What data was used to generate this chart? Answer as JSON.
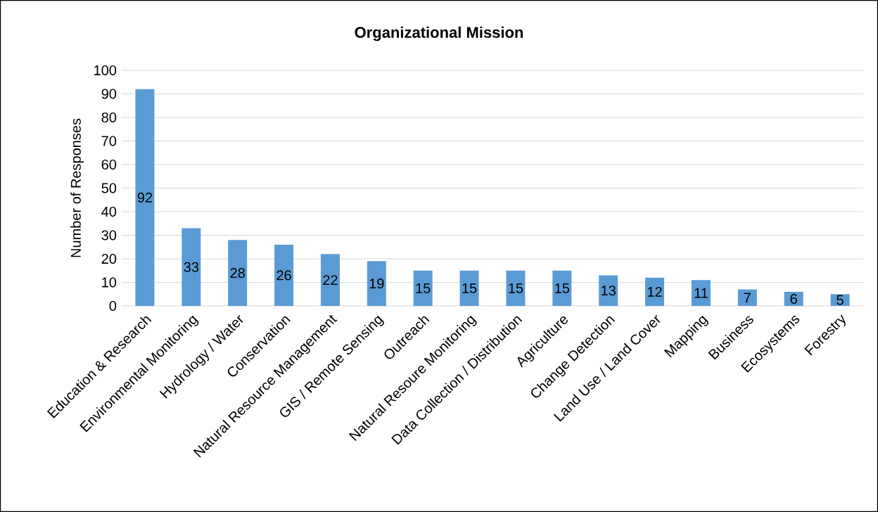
{
  "chart_data": {
    "type": "bar",
    "title": "Organizational Mission",
    "ylabel": "Number of Responses",
    "categories": [
      "Education & Research",
      "Environmental Monitoring",
      "Hydrology / Water",
      "Conservation",
      "Natural Resource Management",
      "GIS / Remote Sensing",
      "Outreach",
      "Natural Resoure Monitoring",
      "Data Collection / Distribution",
      "Agriculture",
      "Change Detection",
      "Land Use / Land Cover",
      "Mapping",
      "Business",
      "Ecosystems",
      "Forestry"
    ],
    "values": [
      92,
      33,
      28,
      26,
      22,
      19,
      15,
      15,
      15,
      15,
      13,
      12,
      11,
      7,
      6,
      5
    ],
    "color": "#5b9bd5",
    "ylim": [
      0,
      100
    ],
    "yticks": [
      0,
      10,
      20,
      30,
      40,
      50,
      60,
      70,
      80,
      90,
      100
    ],
    "grid": "y",
    "data_labels": true
  }
}
